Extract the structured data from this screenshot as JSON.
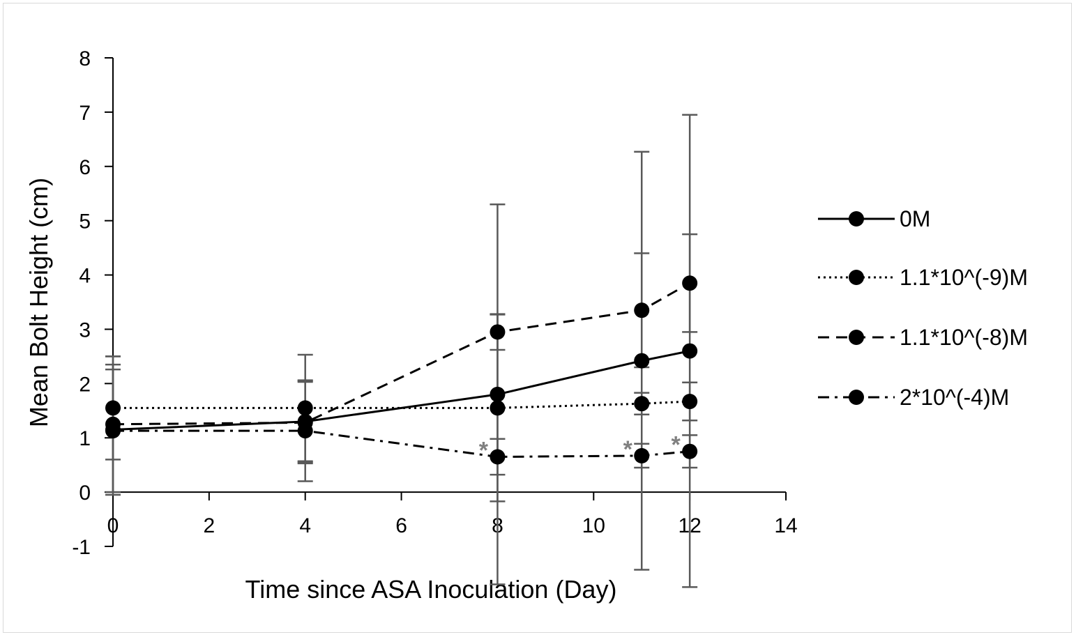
{
  "chart_data": {
    "type": "line",
    "title": "",
    "xlabel": "Time since ASA Inoculation (Day)",
    "ylabel": "Mean Bolt Height (cm)",
    "xlim": [
      0,
      14
    ],
    "ylim": [
      -1,
      8
    ],
    "xticks": [
      0,
      2,
      4,
      6,
      8,
      10,
      12,
      14
    ],
    "yticks": [
      -1,
      0,
      1,
      2,
      3,
      4,
      5,
      6,
      7,
      8
    ],
    "grid": false,
    "legend_position": "right",
    "x": [
      0,
      4,
      8,
      11,
      12
    ],
    "series": [
      {
        "name": "0M",
        "line_style": "solid",
        "marker": "circle",
        "color": "#000000",
        "values": [
          1.15,
          1.3,
          1.8,
          2.42,
          2.6
        ],
        "error": [
          1.2,
          0.75,
          3.5,
          3.85,
          4.35
        ]
      },
      {
        "name": "1.1*10^(-9)M",
        "line_style": "dotted",
        "marker": "circle",
        "color": "#000000",
        "values": [
          1.55,
          1.55,
          1.55,
          1.63,
          1.67
        ],
        "error": [
          0.95,
          0.98,
          1.72,
          0.2,
          0.35
        ]
      },
      {
        "name": "1.1*10^(-8)M",
        "line_style": "dashed",
        "marker": "circle",
        "color": "#000000",
        "values": [
          1.25,
          1.28,
          2.95,
          3.35,
          3.85
        ],
        "error": [
          1.25,
          0.75,
          0.33,
          1.05,
          0.9
        ]
      },
      {
        "name": "2*10^(-4)M",
        "line_style": "dashdot",
        "marker": "circle",
        "color": "#000000",
        "values": [
          1.13,
          1.13,
          0.65,
          0.67,
          0.75
        ],
        "error": [
          1.13,
          0.93,
          0.33,
          0.22,
          0.3
        ]
      }
    ],
    "annotations": [
      {
        "text": "*",
        "x": 8,
        "series": "2*10^(-4)M"
      },
      {
        "text": "*",
        "x": 11,
        "series": "2*10^(-4)M"
      },
      {
        "text": "*",
        "x": 12,
        "series": "2*10^(-4)M"
      }
    ],
    "error_bar_color": "#595959",
    "annotation_color": "#808080"
  }
}
